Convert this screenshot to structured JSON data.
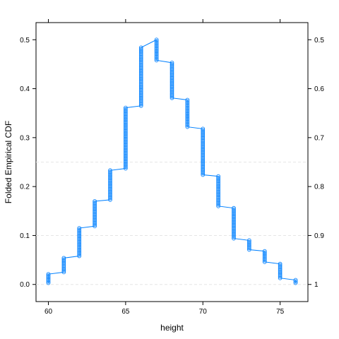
{
  "chart_data": {
    "type": "line",
    "title": "",
    "xlabel": "height",
    "ylabel": "Folded Empirical CDF",
    "xlim": [
      59.2,
      76.8
    ],
    "ylim": [
      -0.035,
      0.535
    ],
    "x_ticks": [
      60,
      65,
      70,
      75
    ],
    "y_ticks_left": [
      0.0,
      0.1,
      0.2,
      0.3,
      0.4,
      0.5
    ],
    "y_ticks_right": [
      {
        "value": 0.5,
        "label": "0.5"
      },
      {
        "value": 0.4,
        "label": "0.6"
      },
      {
        "value": 0.3,
        "label": "0.7"
      },
      {
        "value": 0.2,
        "label": "0.8"
      },
      {
        "value": 0.1,
        "label": "0.9"
      },
      {
        "value": 0.0,
        "label": "1"
      }
    ],
    "reference_lines_y": [
      0.25,
      0.1,
      0.0
    ],
    "series_color": "#0080ff",
    "reference_color": "#e6e6e6",
    "steps": [
      {
        "x": 60,
        "low": 0.003,
        "high": 0.021
      },
      {
        "x": 61,
        "low": 0.025,
        "high": 0.054
      },
      {
        "x": 62,
        "low": 0.058,
        "high": 0.115
      },
      {
        "x": 63,
        "low": 0.119,
        "high": 0.17
      },
      {
        "x": 64,
        "low": 0.173,
        "high": 0.233
      },
      {
        "x": 65,
        "low": 0.237,
        "high": 0.361
      },
      {
        "x": 66,
        "low": 0.365,
        "high": 0.484
      },
      {
        "x": 67,
        "low": 0.458,
        "high": 0.5,
        "peak": 0.5
      },
      {
        "x": 68,
        "low": 0.381,
        "high": 0.453
      },
      {
        "x": 69,
        "low": 0.322,
        "high": 0.377
      },
      {
        "x": 70,
        "low": 0.224,
        "high": 0.318
      },
      {
        "x": 71,
        "low": 0.16,
        "high": 0.221
      },
      {
        "x": 72,
        "low": 0.094,
        "high": 0.156
      },
      {
        "x": 73,
        "low": 0.071,
        "high": 0.09
      },
      {
        "x": 74,
        "low": 0.046,
        "high": 0.068
      },
      {
        "x": 75,
        "low": 0.013,
        "high": 0.042
      },
      {
        "x": 76,
        "low": 0.003,
        "high": 0.009
      }
    ]
  }
}
